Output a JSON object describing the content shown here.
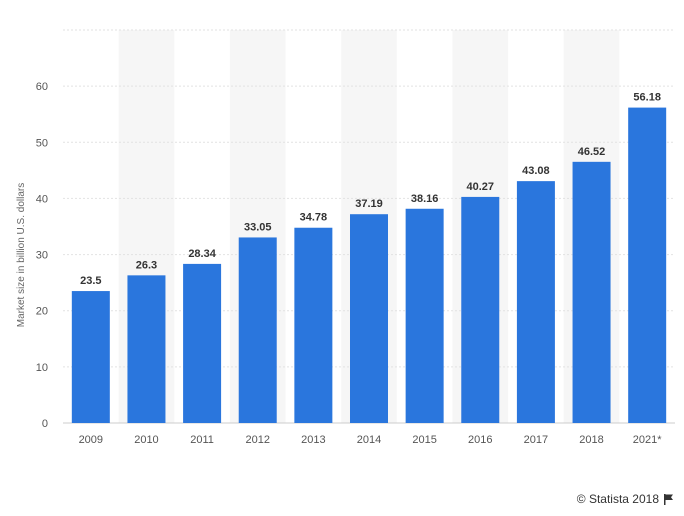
{
  "chart_data": {
    "type": "bar",
    "categories": [
      "2009",
      "2010",
      "2011",
      "2012",
      "2013",
      "2014",
      "2015",
      "2016",
      "2017",
      "2018",
      "2021*"
    ],
    "values": [
      23.5,
      26.3,
      28.34,
      33.05,
      34.78,
      37.19,
      38.16,
      40.27,
      43.08,
      46.52,
      56.18
    ],
    "data_labels": [
      "23.5",
      "26.3",
      "28.34",
      "33.05",
      "34.78",
      "37.19",
      "38.16",
      "40.27",
      "43.08",
      "46.52",
      "56.18"
    ],
    "ylabel": "Market size in billion U.S. dollars",
    "ylim": [
      0,
      70
    ],
    "yticks": [
      0,
      10,
      20,
      30,
      40,
      50,
      60
    ],
    "grid": true,
    "bar_color": "#2a76dd",
    "band_color": "#f6f6f6"
  },
  "footer": {
    "credit": "© Statista 2018",
    "flag_icon": "flag-icon"
  }
}
